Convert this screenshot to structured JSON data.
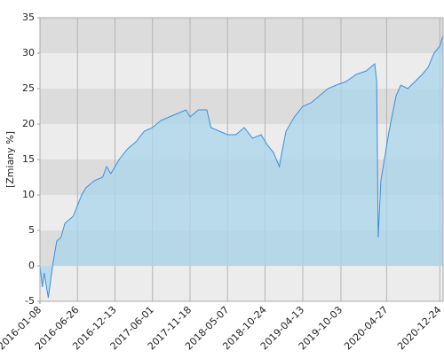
{
  "chart_data": {
    "type": "area",
    "y_label": "[Zmiany %]",
    "x": [
      "2016-01-08",
      "2016-01-19",
      "2016-01-27",
      "2016-02-15",
      "2016-03-05",
      "2016-03-24",
      "2016-04-12",
      "2016-04-30",
      "2016-06-07",
      "2016-07-15",
      "2016-08-03",
      "2016-09-10",
      "2016-10-18",
      "2016-11-05",
      "2016-11-24",
      "2017-01-01",
      "2017-02-08",
      "2017-03-18",
      "2017-04-25",
      "2017-06-01",
      "2017-07-09",
      "2017-08-16",
      "2017-09-23",
      "2017-10-31",
      "2017-11-18",
      "2017-12-26",
      "2018-02-02",
      "2018-02-21",
      "2018-03-31",
      "2018-05-07",
      "2018-06-14",
      "2018-07-22",
      "2018-08-29",
      "2018-10-06",
      "2018-11-05",
      "2018-12-01",
      "2018-12-28",
      "2019-01-08",
      "2019-01-27",
      "2019-03-06",
      "2019-04-13",
      "2019-05-21",
      "2019-06-28",
      "2019-08-05",
      "2019-09-12",
      "2019-10-26",
      "2019-12-11",
      "2020-01-26",
      "2020-03-04",
      "2020-03-13",
      "2020-03-20",
      "2020-04-01",
      "2020-05-08",
      "2020-06-09",
      "2020-06-30",
      "2020-08-01",
      "2020-09-03",
      "2020-10-05",
      "2020-11-01",
      "2020-11-28",
      "2020-12-24",
      "2021-01-08"
    ],
    "values": [
      0,
      -3,
      -1,
      -4.5,
      0,
      3.5,
      4,
      6,
      7,
      10,
      11,
      12,
      12.5,
      14,
      13,
      15,
      16.5,
      17.5,
      19,
      19.5,
      20.5,
      21,
      21.5,
      22,
      21,
      22,
      22,
      19.5,
      19,
      18.5,
      18.5,
      19.5,
      18,
      18.5,
      17,
      16,
      14,
      16,
      19,
      21,
      22.5,
      23,
      24,
      25,
      25.5,
      26,
      27,
      27.5,
      28.5,
      26,
      4,
      12,
      19,
      24,
      25.5,
      25,
      26,
      27,
      28,
      30,
      31,
      32.5
    ],
    "line_color": "#3a8fdc",
    "fill_color": "#a9d6ec",
    "xlim": [
      "2016-01-08",
      "2021-01-08"
    ],
    "xticks": [
      "2016-01-08",
      "2016-06-26",
      "2016-12-13",
      "2017-06-01",
      "2017-11-18",
      "2018-05-07",
      "2018-10-24",
      "2019-04-13",
      "2019-10-03",
      "2020-04-27",
      "2020-12-24"
    ],
    "ylim": [
      -5,
      35
    ],
    "yticks": [
      -5,
      0,
      5,
      10,
      15,
      20,
      25,
      30,
      35
    ],
    "band_colors": [
      "#dcdcdc",
      "#ececec"
    ],
    "grid": true
  }
}
